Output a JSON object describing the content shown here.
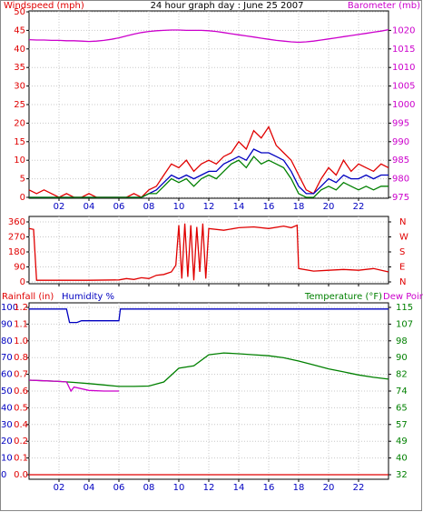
{
  "chart_data": [
    {
      "type": "line",
      "title": "24 hour graph day : June 25 2007",
      "y_label": "Windspeed (mph)",
      "y2_label": "Barometer (mb)",
      "y_color": "#e00000",
      "y2_color": "#cc00cc",
      "x": [
        0,
        0.5,
        1,
        1.5,
        2,
        2.5,
        3,
        3.5,
        4,
        4.5,
        5,
        5.5,
        6,
        6.5,
        7,
        7.5,
        8,
        8.5,
        9,
        9.5,
        10,
        10.5,
        11,
        11.5,
        12,
        12.5,
        13,
        13.5,
        14,
        14.5,
        15,
        15.5,
        16,
        16.5,
        17,
        17.5,
        18,
        18.5,
        19,
        19.5,
        20,
        20.5,
        21,
        21.5,
        22,
        22.5,
        23,
        23.5,
        24
      ],
      "xlim": [
        0,
        24
      ],
      "xticks": [
        {
          "value": 2,
          "label": "02"
        },
        {
          "value": 4,
          "label": "04"
        },
        {
          "value": 6,
          "label": "06"
        },
        {
          "value": 8,
          "label": "08"
        },
        10,
        12,
        14,
        16,
        18,
        20,
        22
      ],
      "ylim": [
        0,
        50
      ],
      "yticks": [
        0,
        5,
        10,
        15,
        20,
        25,
        30,
        35,
        40,
        45,
        50
      ],
      "y2lim": [
        975,
        1025
      ],
      "y2ticks": [
        975,
        980,
        985,
        990,
        995,
        1000,
        1005,
        1010,
        1015,
        1020
      ],
      "grid": true,
      "series": [
        {
          "color": "#cc00cc",
          "axis": "y2",
          "values": [
            1017.5,
            1017.4,
            1017.4,
            1017.3,
            1017.3,
            1017.2,
            1017.2,
            1017.1,
            1017.0,
            1017.1,
            1017.3,
            1017.6,
            1018.0,
            1018.5,
            1019.0,
            1019.4,
            1019.7,
            1019.9,
            1020.0,
            1020.1,
            1020.1,
            1020.0,
            1020.0,
            1020.0,
            1019.9,
            1019.7,
            1019.4,
            1019.1,
            1018.8,
            1018.5,
            1018.2,
            1017.9,
            1017.6,
            1017.3,
            1017.1,
            1016.9,
            1016.8,
            1016.9,
            1017.1,
            1017.4,
            1017.7,
            1018.0,
            1018.3,
            1018.6,
            1018.9,
            1019.2,
            1019.5,
            1019.8,
            1020.2
          ]
        },
        {
          "color": "#e00000",
          "values": [
            2,
            1,
            2,
            1,
            0,
            1,
            0,
            0,
            1,
            0,
            0,
            0,
            0,
            0,
            1,
            0,
            2,
            3,
            6,
            9,
            8,
            10,
            7,
            9,
            10,
            9,
            11,
            12,
            15,
            13,
            18,
            16,
            19,
            14,
            12,
            10,
            6,
            2,
            1,
            5,
            8,
            6,
            10,
            7,
            9,
            8,
            7,
            9,
            8
          ]
        },
        {
          "color": "#0000c0",
          "values": [
            0,
            0,
            0,
            0,
            0,
            0,
            0,
            0,
            0,
            0,
            0,
            0,
            0,
            0,
            0,
            0,
            1,
            2,
            4,
            6,
            5,
            6,
            5,
            6,
            7,
            7,
            9,
            10,
            11,
            10,
            13,
            12,
            12,
            11,
            10,
            7,
            3,
            1,
            1,
            3,
            5,
            4,
            6,
            5,
            5,
            6,
            5,
            6,
            6
          ]
        },
        {
          "color": "#008000",
          "values": [
            0,
            0,
            0,
            0,
            0,
            0,
            0,
            0,
            0,
            0,
            0,
            0,
            0,
            0,
            0,
            0,
            1,
            1,
            3,
            5,
            4,
            5,
            3,
            5,
            6,
            5,
            7,
            9,
            10,
            8,
            11,
            9,
            10,
            9,
            8,
            5,
            1,
            0,
            0,
            2,
            3,
            2,
            4,
            3,
            2,
            3,
            2,
            3,
            3
          ]
        }
      ]
    },
    {
      "type": "line",
      "y_color": "#e00000",
      "y2_color": "#e00000",
      "xlim": [
        0,
        24
      ],
      "xticks": [
        2,
        4,
        6,
        8,
        10,
        12,
        14,
        16,
        18,
        20,
        22
      ],
      "show_xtick_labels": false,
      "ylim": [
        0,
        360
      ],
      "yticks": [
        0,
        90,
        180,
        270,
        360
      ],
      "y2lim": [
        0,
        360
      ],
      "y2ticks": [
        {
          "value": 0,
          "label": "N"
        },
        {
          "value": 90,
          "label": "E"
        },
        {
          "value": 180,
          "label": "S"
        },
        {
          "value": 270,
          "label": "W"
        },
        {
          "value": 360,
          "label": "N"
        }
      ],
      "grid": true,
      "series": [
        {
          "color": "#e00000",
          "x": [
            0,
            0.3,
            0.5,
            2,
            4,
            6,
            6.5,
            7,
            7.5,
            8,
            8.5,
            9,
            9.5,
            9.8,
            10,
            10.2,
            10.4,
            10.6,
            10.8,
            11,
            11.2,
            11.4,
            11.6,
            11.8,
            12,
            13,
            14,
            15,
            16,
            17,
            17.5,
            17.9,
            18,
            19,
            20,
            21,
            22,
            23,
            24
          ],
          "values": [
            320,
            315,
            10,
            10,
            10,
            12,
            20,
            15,
            25,
            20,
            40,
            45,
            60,
            100,
            340,
            20,
            350,
            30,
            340,
            10,
            330,
            60,
            350,
            20,
            320,
            310,
            325,
            330,
            320,
            335,
            325,
            340,
            80,
            65,
            70,
            75,
            70,
            80,
            60
          ]
        }
      ]
    },
    {
      "type": "line",
      "y_color": "#0000c0",
      "y2_color": "#008000",
      "y3_color": "#e00000",
      "xlim": [
        0,
        24
      ],
      "xticks": [
        {
          "value": 2,
          "label": "02"
        },
        {
          "value": 4,
          "label": "04"
        },
        {
          "value": 6,
          "label": "06"
        },
        {
          "value": 8,
          "label": "08"
        },
        10,
        12,
        14,
        16,
        18,
        20,
        22
      ],
      "ylim": [
        0,
        100
      ],
      "yticks": [
        0,
        10,
        20,
        30,
        40,
        50,
        60,
        70,
        80,
        90,
        100
      ],
      "y2lim": [
        32,
        115
      ],
      "y2ticks": [
        32,
        {
          "value": 40.3,
          "label": "40"
        },
        {
          "value": 48.6,
          "label": "49"
        },
        {
          "value": 56.9,
          "label": "57"
        },
        {
          "value": 65.2,
          "label": "65"
        },
        {
          "value": 73.5,
          "label": "74"
        },
        {
          "value": 81.8,
          "label": "82"
        },
        {
          "value": 90.1,
          "label": "90"
        },
        {
          "value": 98.4,
          "label": "98"
        },
        {
          "value": 106.7,
          "label": "107"
        },
        115
      ],
      "y3lim": [
        0,
        1.2
      ],
      "y3ticks": [
        {
          "value": 0,
          "label": "0.0"
        },
        {
          "value": 0.12,
          "label": "0.1"
        },
        {
          "value": 0.24,
          "label": "0.2"
        },
        {
          "value": 0.36,
          "label": "0.4"
        },
        {
          "value": 0.48,
          "label": "0.5"
        },
        0.6,
        {
          "value": 0.72,
          "label": "0.7"
        },
        {
          "value": 0.84,
          "label": "0.8"
        },
        {
          "value": 0.96,
          "label": "1.0"
        },
        {
          "value": 1.08,
          "label": "1.1"
        },
        1.2
      ],
      "grid": true,
      "series": [
        {
          "name": "Rainfall (in)",
          "color": "#e00000",
          "axis": "y3",
          "x": [
            0,
            24
          ],
          "values": [
            0,
            0
          ]
        },
        {
          "name": "Humidity %",
          "color": "#0000c0",
          "x": [
            0,
            2.5,
            2.7,
            3.2,
            3.5,
            6,
            6.1,
            24
          ],
          "values": [
            99,
            99,
            91,
            91,
            92,
            92,
            99,
            99
          ]
        },
        {
          "name": "Temperature (°F)",
          "color": "#008000",
          "axis": "y2",
          "x": [
            0,
            1,
            2,
            3,
            4,
            5,
            6,
            7,
            8,
            9,
            10,
            11,
            12,
            13,
            14,
            15,
            16,
            17,
            18,
            19,
            20,
            21,
            22,
            23,
            24
          ],
          "values": [
            78.9,
            78.6,
            78.3,
            77.8,
            77.2,
            76.5,
            75.8,
            75.8,
            76,
            78,
            84.8,
            86,
            91.5,
            92.4,
            92,
            91.5,
            91,
            90,
            88.4,
            86.5,
            84.5,
            83,
            81.5,
            80.3,
            79.4
          ]
        },
        {
          "name": "Dew Point",
          "color": "#cc00cc",
          "axis": "y2",
          "x": [
            0,
            1,
            2,
            2.5,
            2.8,
            3,
            4,
            5,
            6
          ],
          "values": [
            78.9,
            78.6,
            78.3,
            78,
            73.5,
            75.5,
            73.8,
            73.5,
            73.5
          ]
        }
      ]
    }
  ]
}
